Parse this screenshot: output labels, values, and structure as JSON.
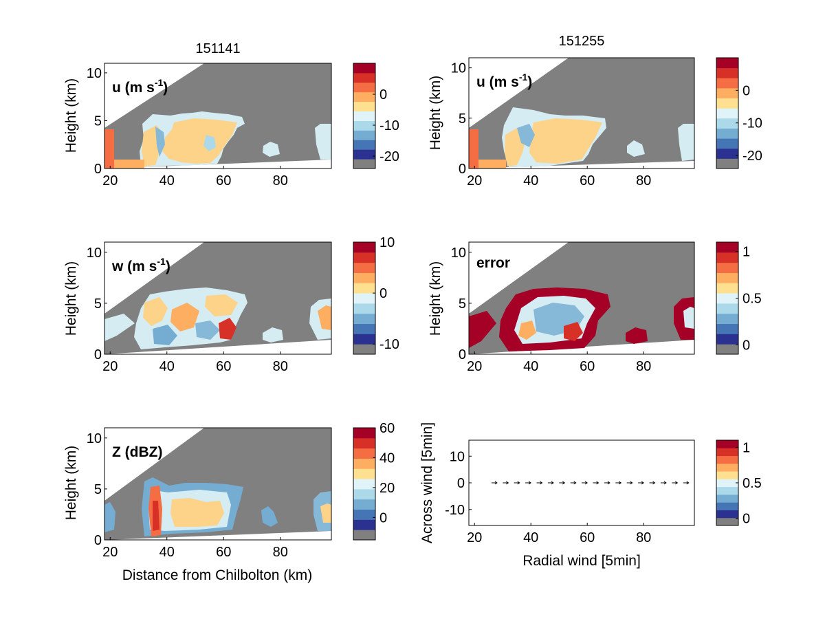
{
  "figure": {
    "titles": [
      "151141",
      "151255"
    ],
    "xlabel_bottom_left": "Distance from Chilbolton (km)",
    "xlabel_bottom_right": "Radial wind [5min]",
    "ylabel_height": "Height (km)",
    "ylabel_across": "Across wind [5min]"
  },
  "colors": {
    "background_gray": "#808080",
    "colormap": [
      "#2b3191",
      "#4575b4",
      "#74add1",
      "#abd9e9",
      "#e0f3f8",
      "#fee090",
      "#fdae61",
      "#f46d43",
      "#d73027",
      "#a50026"
    ],
    "field_light_blue": "#d4ecf2",
    "field_orange": "#fdd38a",
    "field_blue": "#86b9d8",
    "field_dark_red": "#a50026"
  },
  "chart_data": [
    {
      "id": "u-151141",
      "type": "heatmap",
      "title": "151141",
      "panel_label": "u (m s-1)",
      "label_main": "u (m s",
      "label_sup": "-1",
      "label_close": ")",
      "ylabel": "Height (km)",
      "xlim": [
        18,
        98
      ],
      "ylim": [
        0,
        11
      ],
      "x_ticks": [
        "20",
        "40",
        "60",
        "80"
      ],
      "y_ticks": [
        "0",
        "5",
        "10"
      ],
      "colorbar_ticks": [
        {
          "label": "0",
          "value": 0
        },
        {
          "label": "-10",
          "value": -10
        },
        {
          "label": "-20",
          "value": -20
        }
      ],
      "colorbar_range": [
        -24,
        10
      ]
    },
    {
      "id": "u-151255",
      "type": "heatmap",
      "panel_label": "u (m s-1)",
      "label_main": "u (m s",
      "label_sup": "-1",
      "label_close": ")",
      "title": "151255",
      "ylabel": "Height (km)",
      "xlim": [
        18,
        98
      ],
      "ylim": [
        0,
        11
      ],
      "x_ticks": [
        "20",
        "40",
        "60",
        "80"
      ],
      "y_ticks": [
        "0",
        "5",
        "10"
      ],
      "colorbar_ticks": [
        {
          "label": "0",
          "value": 0
        },
        {
          "label": "-10",
          "value": -10
        },
        {
          "label": "-20",
          "value": -20
        }
      ],
      "colorbar_range": [
        -24,
        10
      ]
    },
    {
      "id": "w-151141",
      "type": "heatmap",
      "panel_label": "w (m s-1)",
      "label_main": "w (m s",
      "label_sup": "-1",
      "label_close": ")",
      "ylabel": "Height (km)",
      "xlim": [
        18,
        98
      ],
      "ylim": [
        0,
        11
      ],
      "x_ticks": [
        "20",
        "40",
        "60",
        "80"
      ],
      "y_ticks": [
        "0",
        "5",
        "10"
      ],
      "colorbar_ticks": [
        {
          "label": "10",
          "value": 10
        },
        {
          "label": "0",
          "value": 0
        },
        {
          "label": "-10",
          "value": -10
        }
      ],
      "colorbar_range": [
        -12,
        10
      ]
    },
    {
      "id": "error-151255",
      "type": "heatmap",
      "panel_label": "error",
      "label_main": "error",
      "label_sup": "",
      "label_close": "",
      "ylabel": "Height (km)",
      "xlim": [
        18,
        98
      ],
      "ylim": [
        0,
        11
      ],
      "x_ticks": [
        "20",
        "40",
        "60",
        "80"
      ],
      "y_ticks": [
        "0",
        "5",
        "10"
      ],
      "colorbar_ticks": [
        {
          "label": "1",
          "value": 1
        },
        {
          "label": "0.5",
          "value": 0.5
        },
        {
          "label": "0",
          "value": 0
        }
      ],
      "colorbar_range": [
        -0.1,
        1.1
      ]
    },
    {
      "id": "z-151141",
      "type": "heatmap",
      "panel_label": "Z (dBZ)",
      "label_main": "Z (dBZ)",
      "label_sup": "",
      "label_close": "",
      "ylabel": "Height (km)",
      "xlabel": "Distance from Chilbolton (km)",
      "xlim": [
        18,
        98
      ],
      "ylim": [
        0,
        11
      ],
      "x_ticks": [
        "20",
        "40",
        "60",
        "80"
      ],
      "y_ticks": [
        "0",
        "5",
        "10"
      ],
      "colorbar_ticks": [
        {
          "label": "60",
          "value": 60
        },
        {
          "label": "40",
          "value": 40
        },
        {
          "label": "20",
          "value": 20
        },
        {
          "label": "0",
          "value": 0
        }
      ],
      "colorbar_range": [
        -15,
        60
      ]
    },
    {
      "id": "quiver",
      "type": "scatter",
      "xlabel": "Radial wind [5min]",
      "ylabel": "Across wind [5min]",
      "xlim": [
        18,
        98
      ],
      "ylim": [
        -16,
        16
      ],
      "x_ticks": [
        "20",
        "40",
        "60",
        "80"
      ],
      "y_ticks": [
        "10",
        "0",
        "-10"
      ],
      "y_tick_values": [
        10,
        0,
        -10
      ],
      "vectors_x": [
        27,
        31,
        35,
        39,
        43,
        47,
        51,
        55,
        59,
        63,
        67,
        71,
        75,
        79,
        83,
        87,
        91,
        95
      ],
      "vectors_y": [
        0,
        0,
        0,
        0,
        0,
        0,
        0,
        0,
        0,
        0,
        0,
        0,
        0,
        0,
        0,
        0,
        0,
        0
      ],
      "colorbar_ticks": [
        {
          "label": "1",
          "value": 1
        },
        {
          "label": "0.5",
          "value": 0.5
        },
        {
          "label": "0",
          "value": 0
        }
      ],
      "colorbar_range": [
        -0.1,
        1.1
      ]
    }
  ]
}
